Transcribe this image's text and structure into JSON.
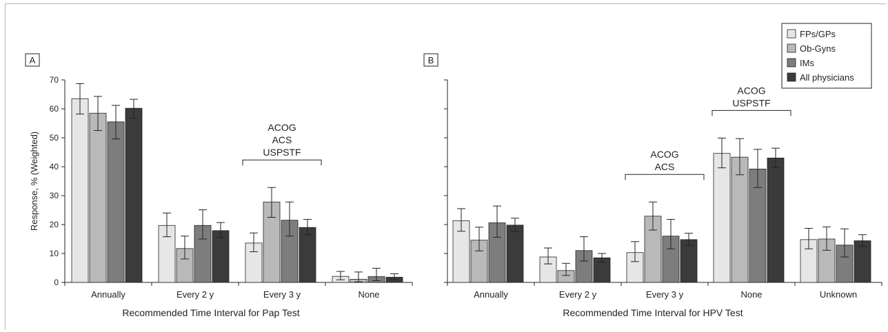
{
  "chart_data": [
    {
      "type": "bar",
      "panel_label": "A",
      "xlabel": "Recommended Time Interval for Pap Test",
      "ylabel": "Response, % (Weighted)",
      "ylim": [
        0,
        70
      ],
      "yticks": [
        0,
        10,
        20,
        30,
        40,
        50,
        60,
        70
      ],
      "categories": [
        "Annually",
        "Every 2 y",
        "Every 3 y",
        "None"
      ],
      "series": [
        {
          "name": "FPs/GPs",
          "values": [
            63.5,
            19.7,
            13.6,
            2.1
          ],
          "err_low": [
            58.2,
            15.8,
            10.6,
            0.9
          ],
          "err_high": [
            68.7,
            24.0,
            17.1,
            3.8
          ]
        },
        {
          "name": "Ob-Gyns",
          "values": [
            58.5,
            11.7,
            27.8,
            1.1
          ],
          "err_low": [
            52.5,
            8.1,
            22.5,
            0.2
          ],
          "err_high": [
            64.3,
            16.0,
            32.8,
            3.6
          ]
        },
        {
          "name": "IMs",
          "values": [
            55.5,
            19.7,
            21.5,
            2.0
          ],
          "err_low": [
            49.6,
            15.0,
            16.0,
            0.6
          ],
          "err_high": [
            61.2,
            25.1,
            27.8,
            4.9
          ]
        },
        {
          "name": "All physicians",
          "values": [
            60.2,
            17.9,
            19.0,
            1.8
          ],
          "err_low": [
            56.8,
            15.6,
            16.5,
            1.0
          ],
          "err_high": [
            63.3,
            20.7,
            21.8,
            3.0
          ]
        }
      ],
      "annotations": [
        {
          "lines": [
            "ACOG",
            "ACS",
            "USPSTF"
          ],
          "category_index": 2
        }
      ]
    },
    {
      "type": "bar",
      "panel_label": "B",
      "xlabel": "Recommended Time Interval for HPV Test",
      "ylim": [
        0,
        70
      ],
      "yticks": [
        0,
        10,
        20,
        30,
        40,
        50,
        60,
        70
      ],
      "categories": [
        "Annually",
        "Every 2 y",
        "Every 3 y",
        "None",
        "Unknown"
      ],
      "series": [
        {
          "name": "FPs/GPs",
          "values": [
            21.3,
            8.8,
            10.3,
            44.6,
            14.8
          ],
          "err_low": [
            17.7,
            6.4,
            7.2,
            39.6,
            11.6
          ],
          "err_high": [
            25.5,
            11.9,
            14.1,
            49.9,
            18.7
          ]
        },
        {
          "name": "Ob-Gyns",
          "values": [
            14.6,
            4.1,
            22.9,
            43.3,
            15.0
          ],
          "err_low": [
            10.9,
            2.4,
            18.1,
            37.2,
            11.1
          ],
          "err_high": [
            19.1,
            6.6,
            27.8,
            49.7,
            19.2
          ]
        },
        {
          "name": "IMs",
          "values": [
            20.6,
            11.0,
            16.0,
            39.2,
            12.9
          ],
          "err_low": [
            15.6,
            7.4,
            11.6,
            32.8,
            8.8
          ],
          "err_high": [
            26.4,
            15.8,
            21.8,
            46.0,
            18.5
          ]
        },
        {
          "name": "All physicians",
          "values": [
            19.8,
            8.5,
            14.8,
            43.0,
            14.4
          ],
          "err_low": [
            17.6,
            7.0,
            12.8,
            39.8,
            12.5
          ],
          "err_high": [
            22.2,
            10.0,
            17.0,
            46.4,
            16.5
          ]
        }
      ],
      "annotations": [
        {
          "lines": [
            "ACOG",
            "ACS"
          ],
          "category_index": 2
        },
        {
          "lines": [
            "ACOG",
            "USPSTF"
          ],
          "category_index": 3
        }
      ]
    }
  ],
  "legend": {
    "placement": "top-right",
    "items": [
      {
        "label": "FPs/GPs",
        "color": "#e6e6e6"
      },
      {
        "label": "Ob-Gyns",
        "color": "#b9b9b9"
      },
      {
        "label": "IMs",
        "color": "#7d7d7d"
      },
      {
        "label": "All physicians",
        "color": "#3b3b3b"
      }
    ]
  },
  "colors": [
    "#e6e6e6",
    "#b9b9b9",
    "#7d7d7d",
    "#3b3b3b"
  ]
}
